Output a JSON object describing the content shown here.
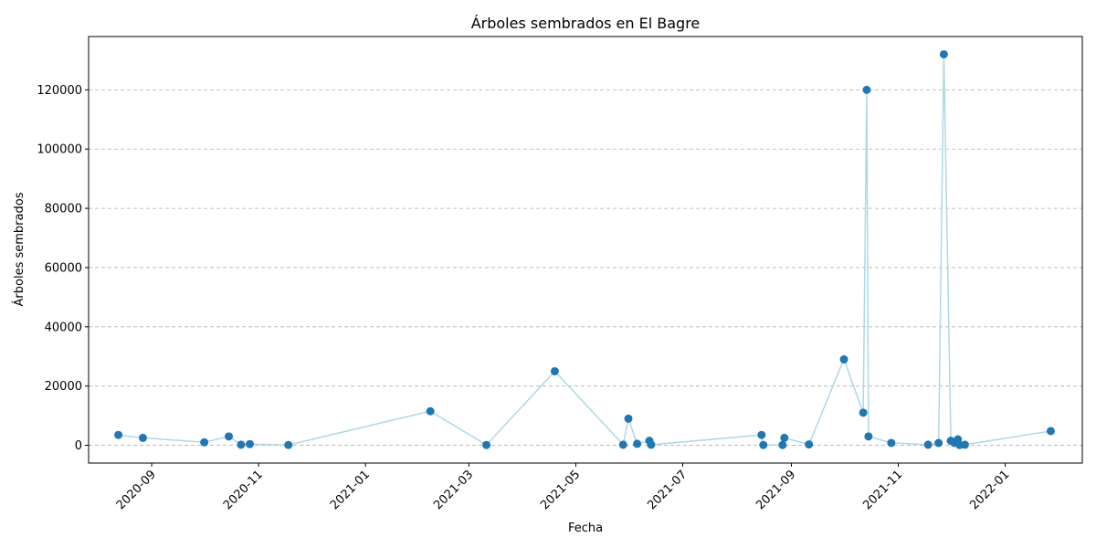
{
  "chart_data": {
    "type": "scatter",
    "title": "Árboles sembrados en El Bagre",
    "xlabel": "Fecha",
    "ylabel": "Árboles sembrados",
    "x_scale": "date",
    "xlim": [
      "2020-07-27",
      "2022-02-14"
    ],
    "ylim": [
      -6000,
      138000
    ],
    "grid": "y-dashed",
    "x_ticks": [
      "2020-09",
      "2020-11",
      "2021-01",
      "2021-03",
      "2021-05",
      "2021-07",
      "2021-09",
      "2021-11",
      "2022-01"
    ],
    "y_ticks": [
      0,
      20000,
      40000,
      60000,
      80000,
      100000,
      120000
    ],
    "colors": {
      "line": "#add8e6",
      "marker": "#1f77b4"
    },
    "series": [
      {
        "x": [
          "2020-08-13",
          "2020-08-27",
          "2020-10-01",
          "2020-10-15",
          "2020-10-22",
          "2020-10-27",
          "2020-11-18",
          "2021-02-07",
          "2021-03-11",
          "2021-04-19",
          "2021-05-28",
          "2021-05-31",
          "2021-06-05",
          "2021-06-12",
          "2021-06-13",
          "2021-08-15",
          "2021-08-16",
          "2021-08-27",
          "2021-08-28",
          "2021-09-11",
          "2021-10-01",
          "2021-10-12",
          "2021-10-14",
          "2021-10-15",
          "2021-10-28",
          "2021-11-18",
          "2021-11-24",
          "2021-11-27",
          "2021-12-01",
          "2021-12-03",
          "2021-12-05",
          "2021-12-06",
          "2021-12-09"
        ],
        "y": [
          3500,
          2500,
          1000,
          3000,
          200,
          400,
          100,
          11500,
          100,
          25000,
          200,
          9000,
          500,
          1500,
          200,
          3500,
          100,
          100,
          2500,
          300,
          29000,
          11000,
          120000,
          3000,
          800,
          200,
          800,
          132000,
          1500,
          800,
          2000,
          100,
          200
        ]
      },
      {
        "x": [
          "2022-01-27"
        ],
        "y": [
          4800
        ]
      }
    ]
  }
}
